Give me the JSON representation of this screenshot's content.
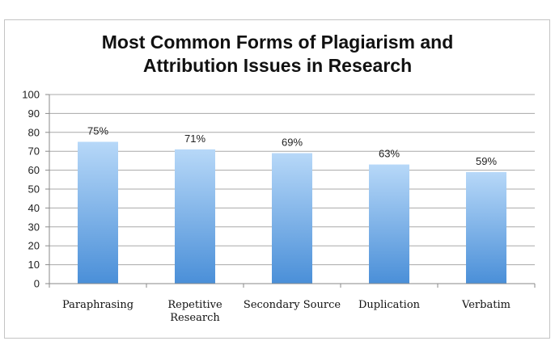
{
  "chart_data": {
    "type": "bar",
    "title_lines": [
      "Most Common Forms of Plagiarism and",
      "Attribution Issues in Research"
    ],
    "categories": [
      [
        "Paraphrasing"
      ],
      [
        "Repetitive",
        "Research"
      ],
      [
        "Secondary Source"
      ],
      [
        "Duplication"
      ],
      [
        "Verbatim"
      ]
    ],
    "values": [
      75,
      71,
      69,
      63,
      59
    ],
    "data_labels": [
      "75%",
      "71%",
      "69%",
      "63%",
      "59%"
    ],
    "ylim": [
      0,
      100
    ],
    "yticks": [
      0,
      10,
      20,
      30,
      40,
      50,
      60,
      70,
      80,
      90,
      100
    ],
    "grid": true,
    "legend": "none",
    "colors": {
      "bar_top": "#b7d8f8",
      "bar_bottom": "#4a8fd8",
      "grid": "#a8a8a8",
      "axis": "#8a8a8a"
    }
  }
}
